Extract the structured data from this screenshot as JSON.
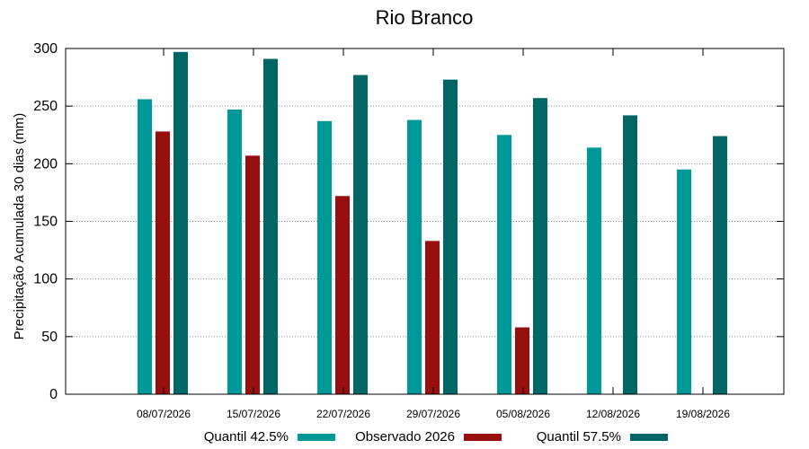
{
  "chart_data": {
    "type": "bar",
    "title": "Rio Branco",
    "xlabel": "",
    "ylabel": "Precipitação Acumulada 30 dias (mm)",
    "ylim": [
      0,
      300
    ],
    "yticks": [
      0,
      50,
      100,
      150,
      200,
      250,
      300
    ],
    "grid": true,
    "legend_position": "bottom",
    "categories": [
      "08/07/2026",
      "15/07/2026",
      "22/07/2026",
      "29/07/2026",
      "05/08/2026",
      "12/08/2026",
      "19/08/2026"
    ],
    "series": [
      {
        "name": "Quantil 42.5%",
        "color": "#009999",
        "values": [
          256,
          247,
          237,
          238,
          225,
          214,
          195
        ]
      },
      {
        "name": "Observado 2026",
        "color": "#990f0f",
        "values": [
          228,
          207,
          172,
          133,
          58,
          null,
          null
        ]
      },
      {
        "name": "Quantil 57.5%",
        "color": "#006666",
        "values": [
          297,
          291,
          277,
          273,
          257,
          242,
          224
        ]
      }
    ]
  }
}
